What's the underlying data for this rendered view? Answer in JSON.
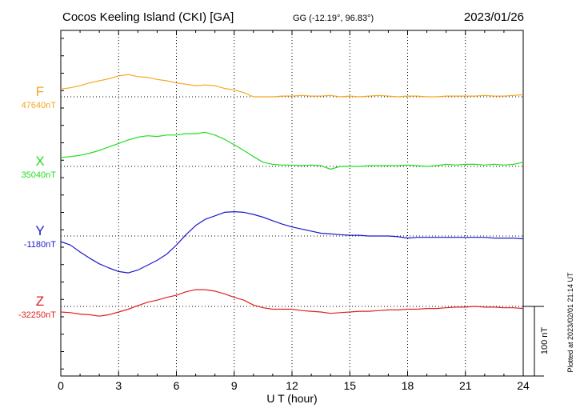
{
  "header": {
    "station": "Cocos Keeling Island (CKI)  [GA]",
    "coords": "GG (-12.19°,  96.83°)",
    "date": "2023/01/26"
  },
  "footer": {
    "plotted": "Plotted at 2023/02/01 21:14 UT"
  },
  "chart_data": {
    "type": "line",
    "xlabel": "U T (hour)",
    "x_ticks": [
      0,
      3,
      6,
      9,
      12,
      15,
      18,
      21,
      24
    ],
    "xlim": [
      0,
      24
    ],
    "scale_bar_label": "100 nT",
    "scale_bar_nT": 100,
    "grid": "dotted baselines per component, vertical dotted lines every 3 h",
    "series": [
      {
        "name": "F",
        "baseline_label": "47640nT",
        "baseline_nT": 47640,
        "color": "#f5a623",
        "x": [
          0,
          0.5,
          1,
          1.5,
          2,
          2.5,
          3,
          3.5,
          4,
          4.5,
          5,
          5.5,
          6,
          6.5,
          7,
          7.5,
          8,
          8.5,
          9,
          9.5,
          10,
          10.5,
          11,
          11.5,
          12,
          12.5,
          13,
          13.5,
          14,
          14.5,
          15,
          15.5,
          16,
          16.5,
          17,
          17.5,
          18,
          18.5,
          19,
          19.5,
          20,
          20.5,
          21,
          21.5,
          22,
          22.5,
          23,
          23.5,
          24
        ],
        "y": [
          47651,
          47653,
          47656,
          47660,
          47663,
          47666,
          47670,
          47672,
          47669,
          47668,
          47665,
          47663,
          47660,
          47658,
          47656,
          47657,
          47656,
          47652,
          47650,
          47646,
          47640,
          47640,
          47640,
          47641,
          47641,
          47642,
          47641,
          47641,
          47642,
          47640,
          47641,
          47640,
          47641,
          47642,
          47641,
          47640,
          47641,
          47641,
          47640,
          47640,
          47641,
          47641,
          47641,
          47641,
          47642,
          47641,
          47641,
          47642,
          47643
        ]
      },
      {
        "name": "X",
        "baseline_label": "35040nT",
        "baseline_nT": 35040,
        "color": "#22dd22",
        "x": [
          0,
          0.5,
          1,
          1.5,
          2,
          2.5,
          3,
          3.5,
          4,
          4.5,
          5,
          5.5,
          6,
          6.5,
          7,
          7.5,
          8,
          8.5,
          9,
          9.5,
          10,
          10.5,
          11,
          11.5,
          12,
          12.5,
          13,
          13.5,
          14,
          14.5,
          15,
          15.5,
          16,
          16.5,
          17,
          17.5,
          18,
          18.5,
          19,
          19.5,
          20,
          20.5,
          21,
          21.5,
          22,
          22.5,
          23,
          23.5,
          24
        ],
        "y": [
          35053,
          35054,
          35056,
          35059,
          35063,
          35068,
          35073,
          35078,
          35082,
          35084,
          35083,
          35085,
          35085,
          35087,
          35087,
          35089,
          35085,
          35079,
          35071,
          35063,
          35054,
          35046,
          35043,
          35042,
          35042,
          35041,
          35042,
          35041,
          35036,
          35040,
          35040,
          35040,
          35041,
          35041,
          35041,
          35041,
          35042,
          35041,
          35040,
          35041,
          35043,
          35042,
          35043,
          35043,
          35042,
          35043,
          35042,
          35043,
          35046
        ]
      },
      {
        "name": "Y",
        "baseline_label": "-1180nT",
        "baseline_nT": -1180,
        "color": "#1a1acc",
        "x": [
          0,
          0.5,
          1,
          1.5,
          2,
          2.5,
          3,
          3.5,
          4,
          4.5,
          5,
          5.5,
          6,
          6.5,
          7,
          7.5,
          8,
          8.5,
          9,
          9.5,
          10,
          10.5,
          11,
          11.5,
          12,
          12.5,
          13,
          13.5,
          14,
          14.5,
          15,
          15.5,
          16,
          16.5,
          17,
          17.5,
          18,
          18.5,
          19,
          19.5,
          20,
          20.5,
          21,
          21.5,
          22,
          22.5,
          23,
          23.5,
          24
        ],
        "y": [
          -1188,
          -1193,
          -1203,
          -1212,
          -1220,
          -1226,
          -1231,
          -1233,
          -1229,
          -1222,
          -1215,
          -1206,
          -1193,
          -1178,
          -1165,
          -1156,
          -1151,
          -1146,
          -1145,
          -1146,
          -1149,
          -1153,
          -1158,
          -1163,
          -1167,
          -1170,
          -1173,
          -1176,
          -1177,
          -1178,
          -1179,
          -1179,
          -1180,
          -1180,
          -1180,
          -1181,
          -1183,
          -1182,
          -1182,
          -1182,
          -1182,
          -1182,
          -1182,
          -1182,
          -1182,
          -1183,
          -1183,
          -1183,
          -1184
        ]
      },
      {
        "name": "Z",
        "baseline_label": "-32250nT",
        "baseline_nT": -32250,
        "color": "#dd2222",
        "x": [
          0,
          0.5,
          1,
          1.5,
          2,
          2.5,
          3,
          3.5,
          4,
          4.5,
          5,
          5.5,
          6,
          6.5,
          7,
          7.5,
          8,
          8.5,
          9,
          9.5,
          10,
          10.5,
          11,
          11.5,
          12,
          12.5,
          13,
          13.5,
          14,
          14.5,
          15,
          15.5,
          16,
          16.5,
          17,
          17.5,
          18,
          18.5,
          19,
          19.5,
          20,
          20.5,
          21,
          21.5,
          22,
          22.5,
          23,
          23.5,
          24
        ],
        "y": [
          -32258,
          -32259,
          -32261,
          -32262,
          -32264,
          -32262,
          -32258,
          -32254,
          -32249,
          -32244,
          -32241,
          -32237,
          -32234,
          -32229,
          -32226,
          -32226,
          -32228,
          -32232,
          -32237,
          -32241,
          -32248,
          -32252,
          -32254,
          -32254,
          -32254,
          -32256,
          -32257,
          -32258,
          -32260,
          -32259,
          -32258,
          -32257,
          -32257,
          -32256,
          -32255,
          -32255,
          -32254,
          -32254,
          -32253,
          -32253,
          -32252,
          -32251,
          -32251,
          -32250,
          -32251,
          -32251,
          -32252,
          -32252,
          -32253
        ]
      }
    ]
  }
}
